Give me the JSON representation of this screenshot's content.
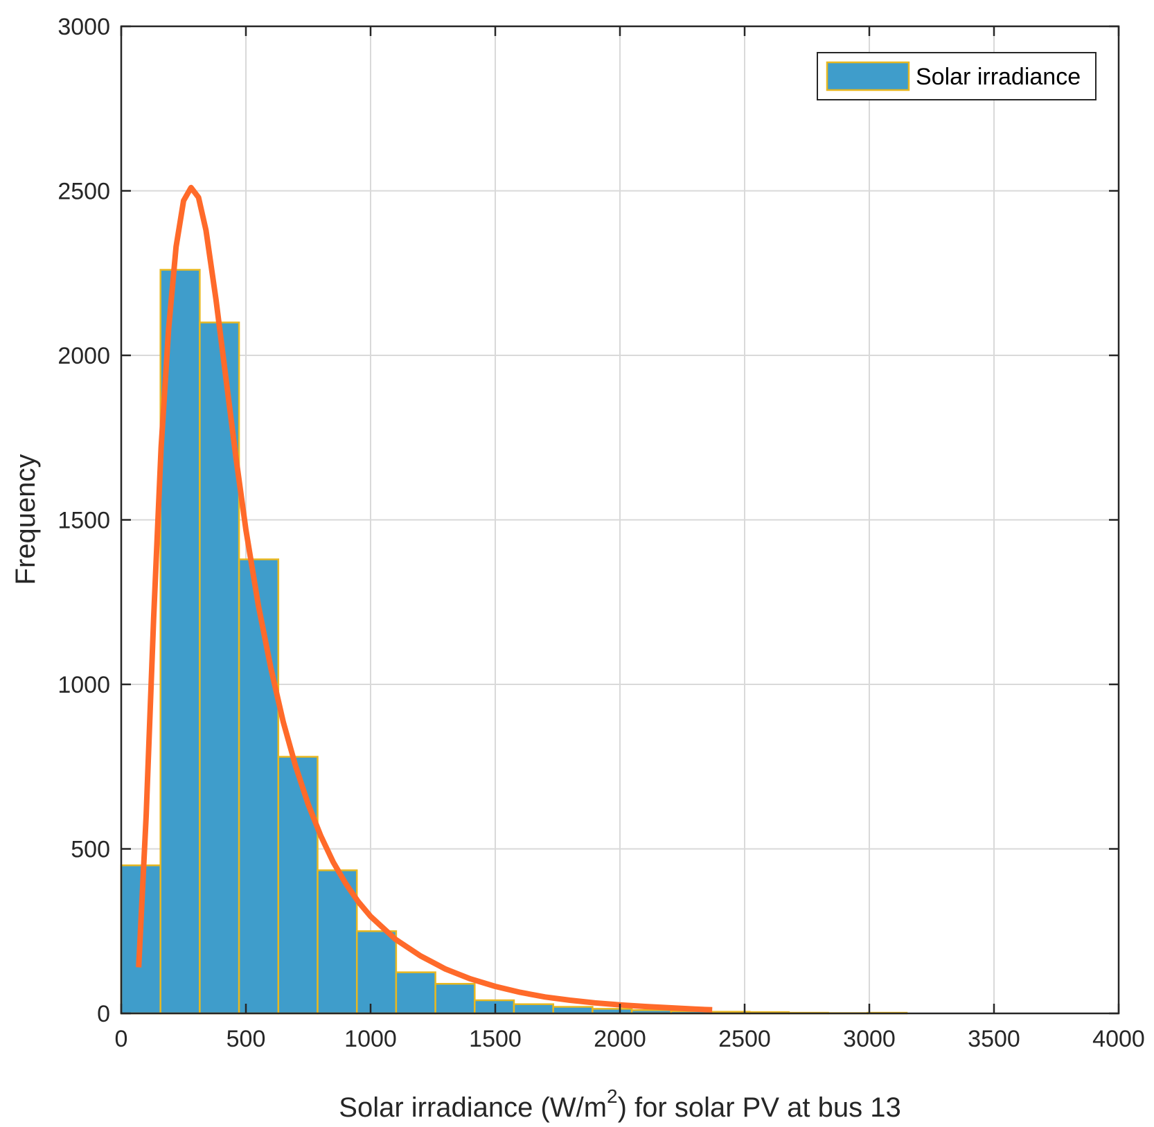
{
  "chart_data": {
    "type": "bar",
    "title": "",
    "xlabel": {
      "prefix": "Solar irradiance (W/m",
      "superscript": "2",
      "suffix": ") for solar PV at bus 13"
    },
    "ylabel": "Frequency",
    "xlim": [
      0,
      4000
    ],
    "ylim": [
      0,
      3000
    ],
    "xticks": [
      "0",
      "500",
      "1000",
      "1500",
      "2000",
      "2500",
      "3000",
      "3500",
      "4000"
    ],
    "yticks": [
      "0",
      "500",
      "1000",
      "1500",
      "2000",
      "2500",
      "3000"
    ],
    "grid": true,
    "legend": {
      "position": "top-right",
      "entries": [
        "Solar irradiance"
      ]
    },
    "colors": {
      "bar_fill": "#3f9dcb",
      "bar_edge": "#e8b820",
      "fit_line": "#ff6a2a",
      "grid": "#d9d9d9",
      "axis": "#262626"
    },
    "histogram": {
      "name": "Solar irradiance",
      "bin_edges": [
        0,
        157.5,
        315,
        472.5,
        630,
        787.5,
        945,
        1102.5,
        1260,
        1417.5,
        1575,
        1732.5,
        1890,
        2047.5,
        2205,
        2362.5,
        2520,
        2677.5,
        2835,
        2992.5,
        3150
      ],
      "counts": [
        450,
        2260,
        2100,
        1380,
        780,
        435,
        250,
        125,
        90,
        40,
        28,
        20,
        14,
        10,
        7,
        5,
        4,
        2,
        1,
        2
      ]
    },
    "fit_curve": {
      "x": [
        70,
        100,
        130,
        160,
        190,
        220,
        250,
        280,
        310,
        340,
        380,
        420,
        460,
        500,
        550,
        600,
        650,
        700,
        750,
        800,
        850,
        900,
        950,
        1000,
        1100,
        1200,
        1300,
        1400,
        1500,
        1600,
        1700,
        1800,
        1900,
        2000,
        2100,
        2200,
        2300,
        2370
      ],
      "y": [
        140,
        600,
        1200,
        1720,
        2080,
        2330,
        2470,
        2510,
        2480,
        2380,
        2170,
        1930,
        1690,
        1470,
        1240,
        1050,
        885,
        750,
        635,
        540,
        460,
        395,
        340,
        295,
        225,
        175,
        135,
        105,
        82,
        64,
        50,
        40,
        32,
        26,
        21,
        17,
        13,
        11
      ]
    }
  }
}
